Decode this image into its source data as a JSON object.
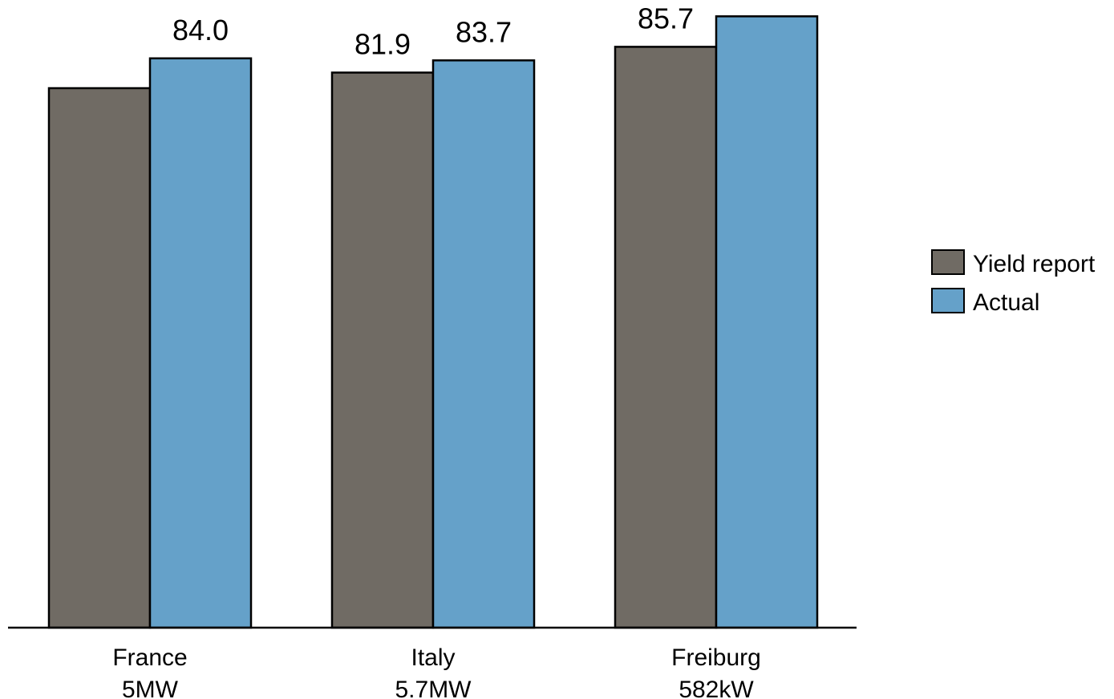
{
  "chart_data": {
    "type": "bar",
    "categories": [
      [
        "France",
        "5MW"
      ],
      [
        "Italy",
        "5.7MW"
      ],
      [
        "Freiburg",
        "582kW"
      ]
    ],
    "series": [
      {
        "name": "Yield report",
        "color": "#706b64",
        "values": [
          79.6,
          81.9,
          85.7
        ],
        "data_labels": [
          "",
          "81.9",
          "85.7"
        ]
      },
      {
        "name": "Actual",
        "color": "#65a1c9",
        "values": [
          84.0,
          83.7,
          90.2
        ],
        "data_labels": [
          "84.0",
          "83.7",
          ""
        ]
      }
    ],
    "ylim": [
      0,
      100
    ],
    "legend": "right",
    "grid": false,
    "title": "",
    "xlabel": "",
    "ylabel": ""
  }
}
